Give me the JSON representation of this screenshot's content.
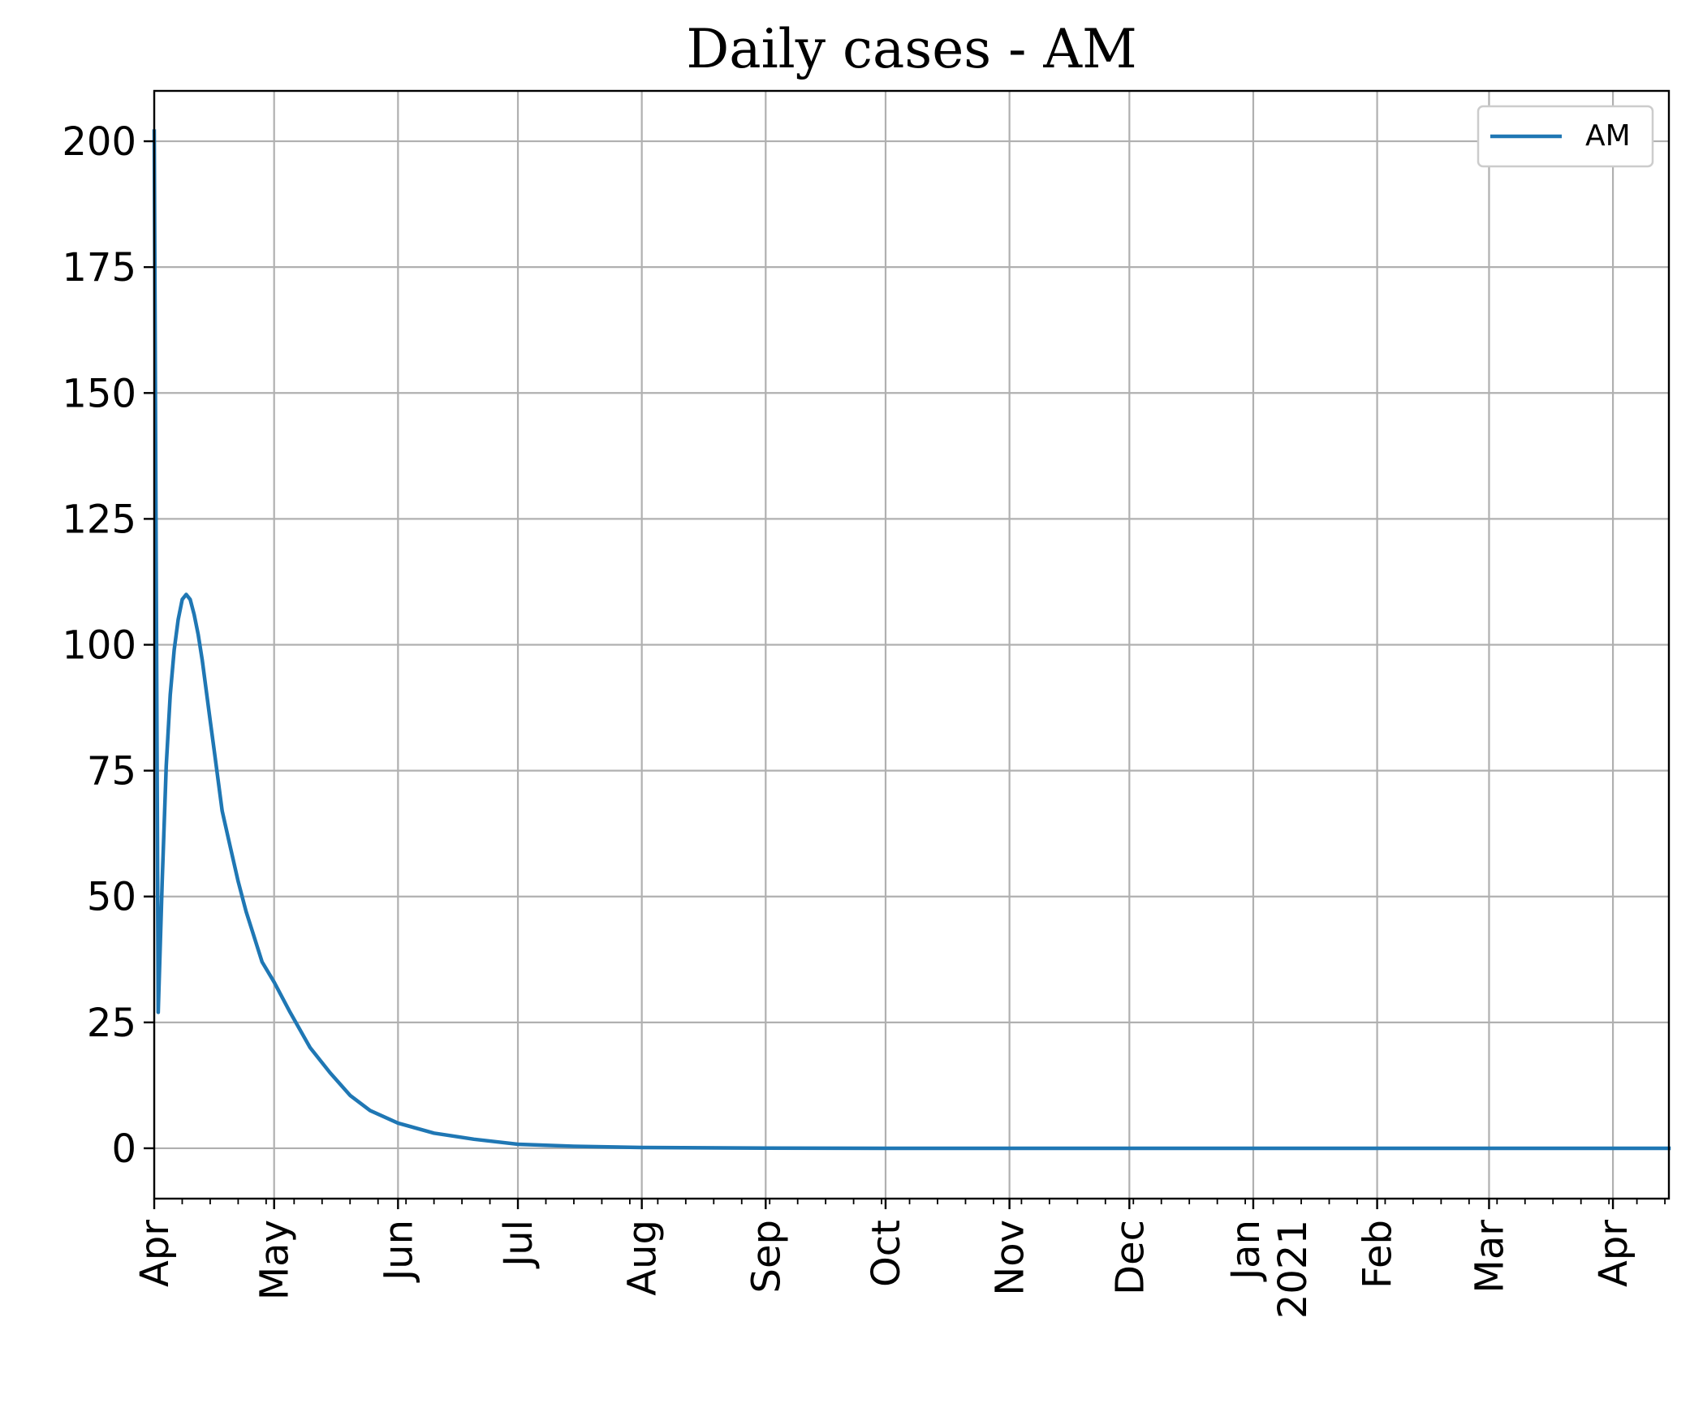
{
  "chart_data": {
    "type": "line",
    "title": "Daily cases - AM",
    "xlabel": "",
    "ylabel": "",
    "xlim": [
      "2020-04-01",
      "2021-04-15"
    ],
    "ylim": [
      -10,
      210
    ],
    "yticks": [
      0,
      25,
      50,
      75,
      100,
      125,
      150,
      175,
      200
    ],
    "xticks": [
      {
        "date": "2020-04-01",
        "label": "Apr"
      },
      {
        "date": "2020-05-01",
        "label": "May"
      },
      {
        "date": "2020-06-01",
        "label": "Jun"
      },
      {
        "date": "2020-07-01",
        "label": "Jul"
      },
      {
        "date": "2020-08-01",
        "label": "Aug"
      },
      {
        "date": "2020-09-01",
        "label": "Sep"
      },
      {
        "date": "2020-10-01",
        "label": "Oct"
      },
      {
        "date": "2020-11-01",
        "label": "Nov"
      },
      {
        "date": "2020-12-01",
        "label": "Dec"
      },
      {
        "date": "2021-01-01",
        "label": "Jan",
        "label2": "2021"
      },
      {
        "date": "2021-02-01",
        "label": "Feb"
      },
      {
        "date": "2021-03-01",
        "label": "Mar"
      },
      {
        "date": "2021-04-01",
        "label": "Apr"
      }
    ],
    "grid": true,
    "legend": {
      "position": "top-right",
      "entries": [
        "AM"
      ]
    },
    "series": [
      {
        "name": "AM",
        "color": "#1f77b4",
        "points": [
          [
            "2020-04-01",
            202
          ],
          [
            "2020-04-02",
            27
          ],
          [
            "2020-04-03",
            53
          ],
          [
            "2020-04-04",
            76
          ],
          [
            "2020-04-05",
            90
          ],
          [
            "2020-04-06",
            99
          ],
          [
            "2020-04-07",
            105
          ],
          [
            "2020-04-08",
            109
          ],
          [
            "2020-04-09",
            110
          ],
          [
            "2020-04-10",
            109
          ],
          [
            "2020-04-11",
            106
          ],
          [
            "2020-04-12",
            102
          ],
          [
            "2020-04-13",
            97
          ],
          [
            "2020-04-14",
            91
          ],
          [
            "2020-04-15",
            85
          ],
          [
            "2020-04-16",
            79
          ],
          [
            "2020-04-18",
            67
          ],
          [
            "2020-04-20",
            60
          ],
          [
            "2020-04-22",
            53
          ],
          [
            "2020-04-24",
            47
          ],
          [
            "2020-04-26",
            42
          ],
          [
            "2020-04-28",
            37
          ],
          [
            "2020-05-01",
            33
          ],
          [
            "2020-05-05",
            27
          ],
          [
            "2020-05-10",
            20
          ],
          [
            "2020-05-15",
            15
          ],
          [
            "2020-05-20",
            10.5
          ],
          [
            "2020-05-25",
            7.5
          ],
          [
            "2020-06-01",
            5
          ],
          [
            "2020-06-10",
            3
          ],
          [
            "2020-06-20",
            1.8
          ],
          [
            "2020-07-01",
            0.8
          ],
          [
            "2020-07-15",
            0.4
          ],
          [
            "2020-08-01",
            0.15
          ],
          [
            "2020-09-01",
            0.03
          ],
          [
            "2020-10-01",
            0
          ],
          [
            "2020-11-01",
            0
          ],
          [
            "2020-12-01",
            0
          ],
          [
            "2021-01-01",
            0
          ],
          [
            "2021-02-01",
            0
          ],
          [
            "2021-03-01",
            0
          ],
          [
            "2021-04-01",
            0
          ],
          [
            "2021-04-15",
            0
          ]
        ]
      }
    ]
  }
}
